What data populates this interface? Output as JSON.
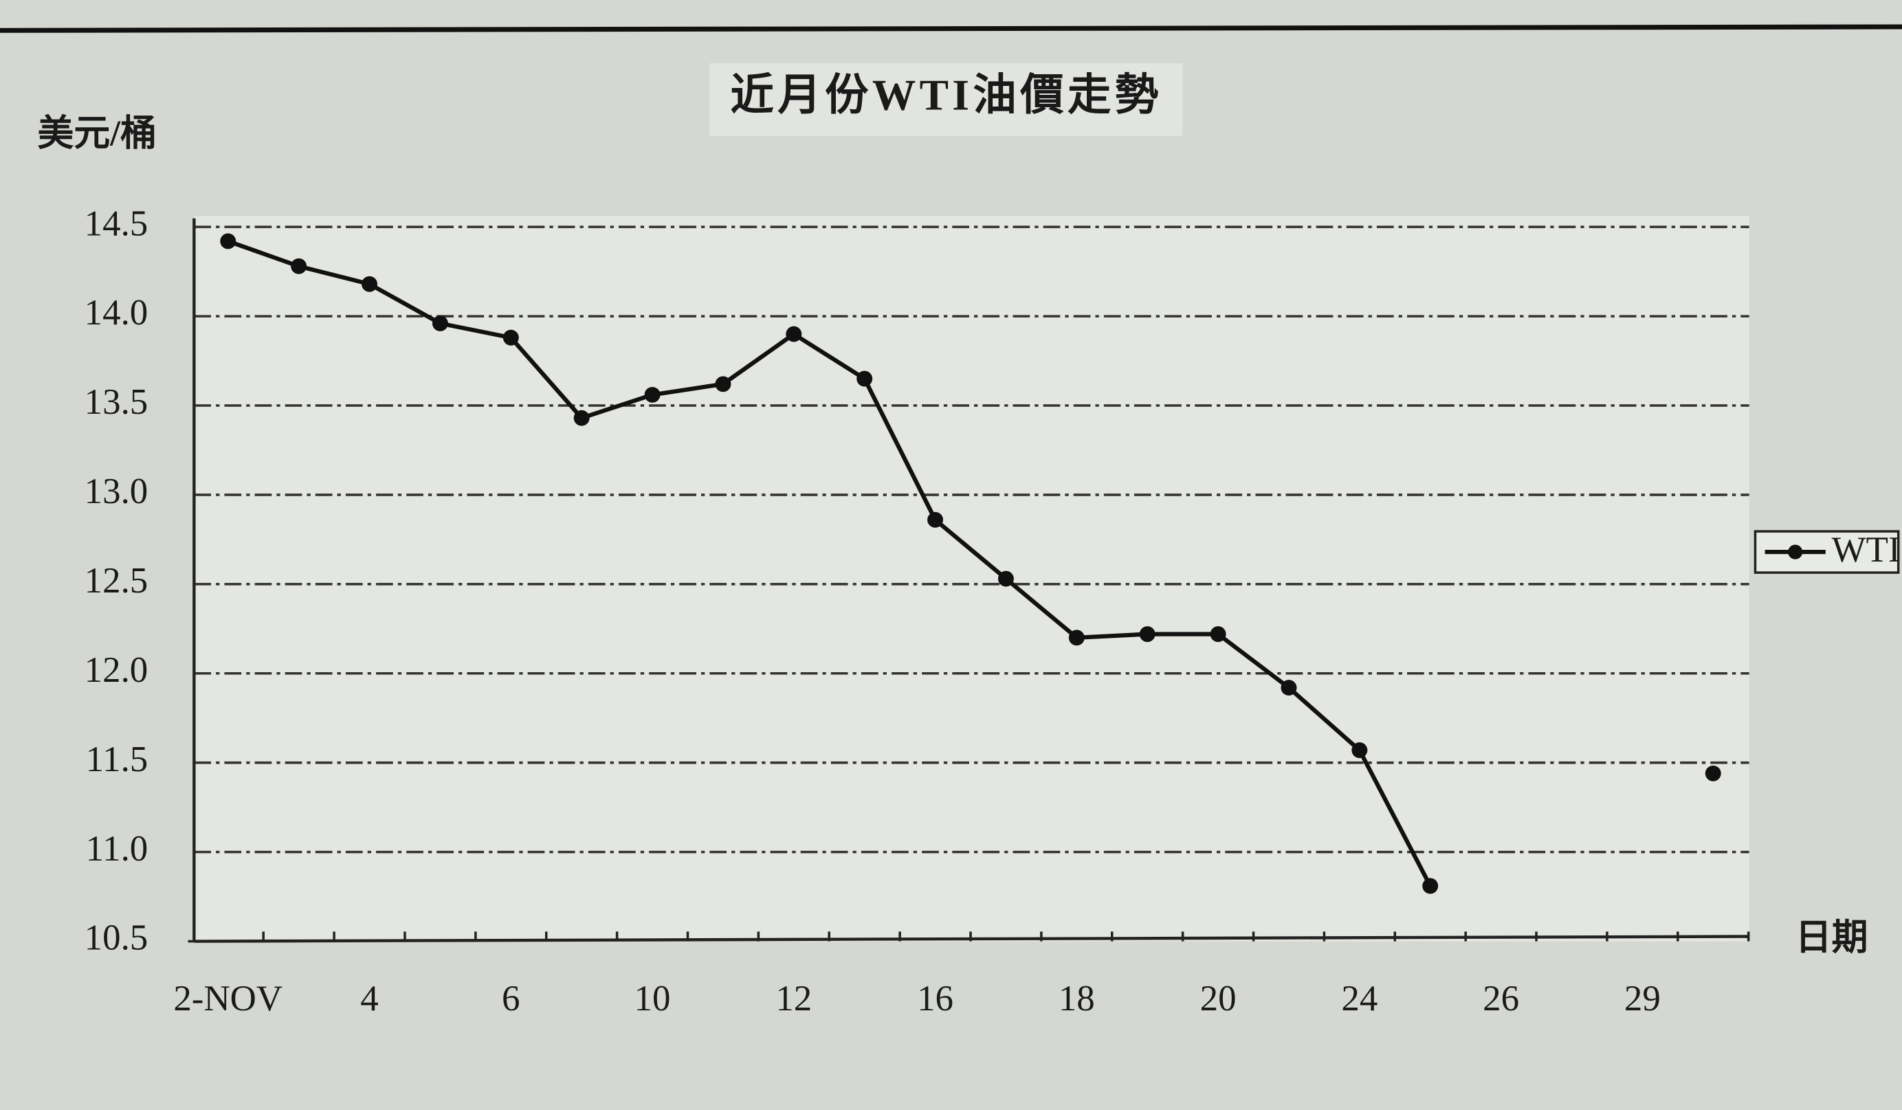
{
  "chart_data": {
    "type": "line",
    "title": "近月份WTI油價走勢",
    "y_label": "美元/桶",
    "x_label": "日期",
    "categories": [
      "2-NOV",
      null,
      "4",
      null,
      "6",
      null,
      "10",
      null,
      "12",
      null,
      "16",
      null,
      "18",
      null,
      "20",
      null,
      "24",
      null,
      "26",
      null,
      "29",
      null
    ],
    "series": [
      {
        "name": "WTI",
        "color": "#111111",
        "values": [
          14.42,
          14.28,
          14.18,
          13.96,
          13.88,
          13.43,
          13.56,
          13.62,
          13.9,
          13.65,
          12.86,
          12.53,
          12.2,
          12.22,
          12.22,
          11.92,
          11.57,
          10.81,
          null,
          null,
          null,
          11.44
        ]
      }
    ],
    "ylim": [
      10.5,
      14.5
    ],
    "yticks": [
      {
        "value": 10.5,
        "label": "10.5"
      },
      {
        "value": 11,
        "label": "11.0"
      },
      11.5,
      {
        "value": 12,
        "label": "12.0"
      },
      12.5,
      {
        "value": 13,
        "label": "13.0"
      },
      13.5,
      {
        "value": 14,
        "label": "14.0"
      },
      14.5
    ],
    "grid": true,
    "legend": "right"
  }
}
